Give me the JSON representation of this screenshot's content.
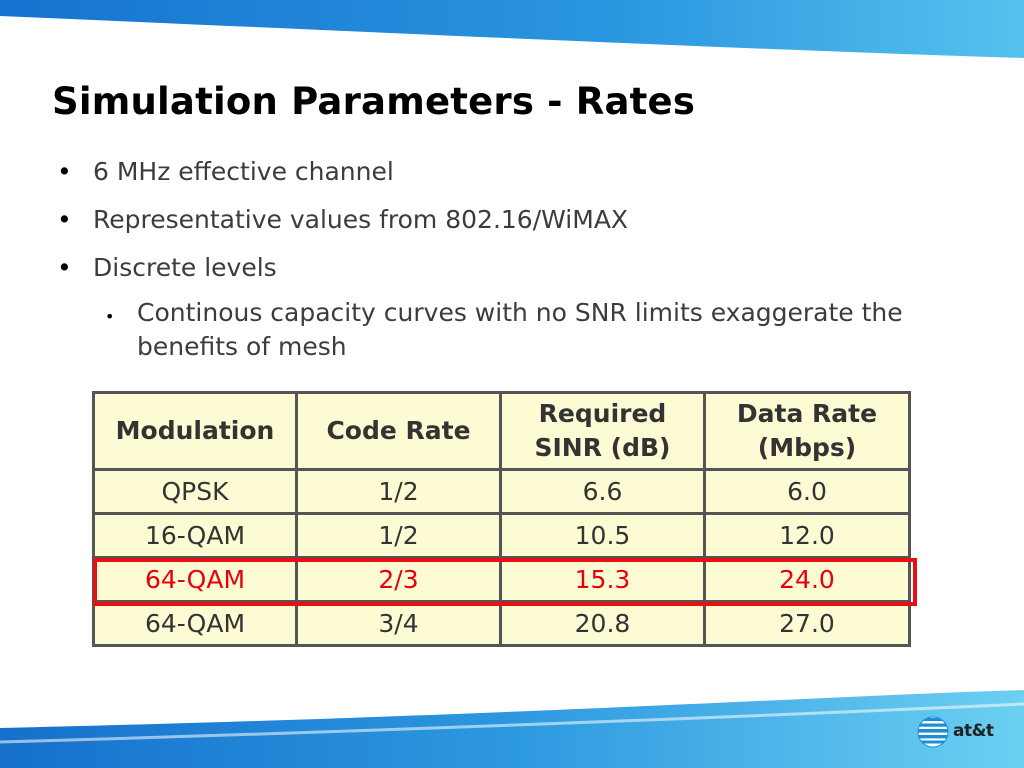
{
  "slide": {
    "title": "Simulation Parameters - Rates",
    "bullets": [
      "6 MHz effective channel",
      "Representative values from 802.16/WiMAX",
      "Discrete levels"
    ],
    "sub_bullet": "Continous capacity curves with no SNR limits exaggerate the benefits of mesh"
  },
  "table": {
    "headers": [
      "Modulation",
      "Code Rate",
      "Required SINR (dB)",
      "Data Rate (Mbps)"
    ],
    "rows": [
      [
        "QPSK",
        "1/2",
        "6.6",
        "6.0"
      ],
      [
        "16-QAM",
        "1/2",
        "10.5",
        "12.0"
      ],
      [
        "64-QAM",
        "2/3",
        "15.3",
        "24.0"
      ],
      [
        "64-QAM",
        "3/4",
        "20.8",
        "27.0"
      ]
    ],
    "highlight_row_index": 2,
    "highlight_color": "#e8000d",
    "fill_color": "#fdfbd4"
  },
  "logo": {
    "text": "at&t",
    "icon": "att-globe-icon"
  },
  "colors": {
    "swoosh_top": "#1e88d8",
    "swoosh_bottom": "#1e88d8",
    "title": "#000000"
  }
}
